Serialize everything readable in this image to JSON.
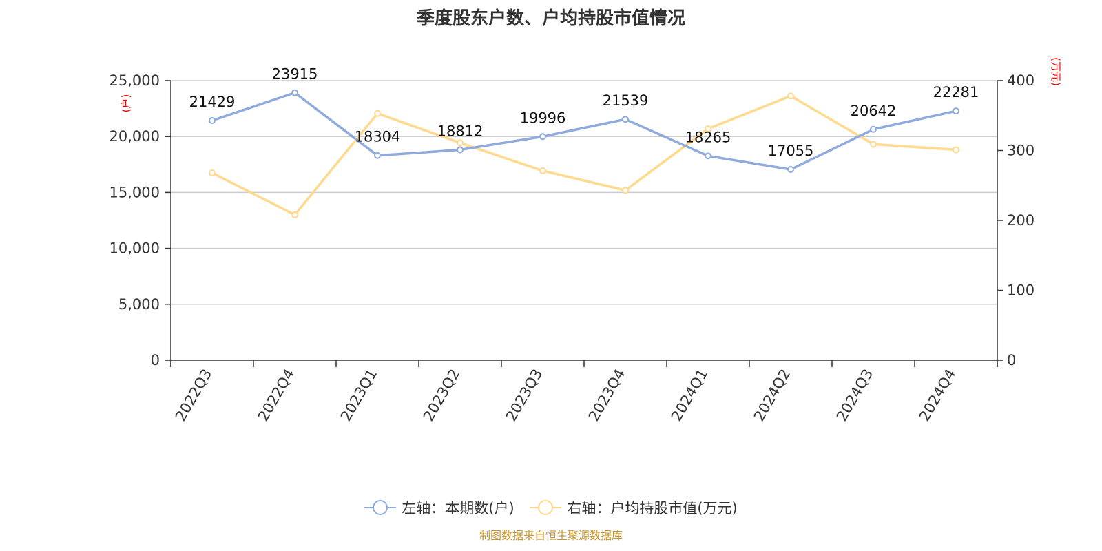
{
  "title": "季度股东户数、户均持股市值情况",
  "source": "制图数据来自恒生聚源数据库",
  "colors": {
    "series1": "#8faadc",
    "series2": "#ffd98e",
    "unit": "#e00000",
    "source": "#c8962f"
  },
  "chart_data": {
    "type": "line",
    "categories": [
      "2022Q3",
      "2022Q4",
      "2023Q1",
      "2023Q2",
      "2023Q3",
      "2023Q4",
      "2024Q1",
      "2024Q2",
      "2024Q3",
      "2024Q4"
    ],
    "left_axis": {
      "unit": "(户)",
      "ylim": [
        0,
        25000
      ],
      "ticks": [
        "0",
        "5,000",
        "10,000",
        "15,000",
        "20,000",
        "25,000"
      ]
    },
    "right_axis": {
      "unit": "(万元)",
      "ylim": [
        0,
        400
      ],
      "ticks": [
        "0",
        "100",
        "200",
        "300",
        "400"
      ]
    },
    "grid": true,
    "legend_position": "bottom",
    "series": [
      {
        "name": "左轴：本期数(户)",
        "axis": "left",
        "values": [
          21429,
          23915,
          18304,
          18812,
          19996,
          21539,
          18265,
          17055,
          20642,
          22281
        ],
        "data_labels": [
          "21429",
          "23915",
          "18304",
          "18812",
          "19996",
          "21539",
          "18265",
          "17055",
          "20642",
          "22281"
        ]
      },
      {
        "name": "右轴：户均持股市值(万元)",
        "axis": "right",
        "values": [
          268,
          208,
          353,
          311,
          271,
          243,
          331,
          378,
          309,
          301
        ]
      }
    ]
  }
}
